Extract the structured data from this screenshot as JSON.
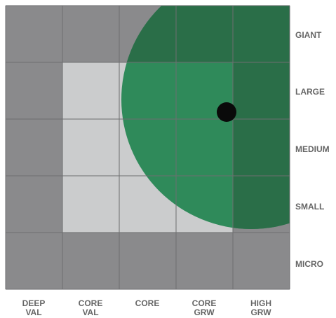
{
  "row_labels": [
    "GIANT",
    "LARGE",
    "MEDIUM",
    "SMALL",
    "MICRO"
  ],
  "col_labels": [
    "DEEP\nVAL",
    "CORE\nVAL",
    "CORE",
    "CORE\nGRW",
    "HIGH\nGRW"
  ],
  "colors": {
    "outer_cell": "#8a8a8c",
    "inner_cell": "#cbcccd",
    "grid_line": "#6e6e70",
    "circle_fill": "#2f8a5a",
    "circle_overlap": "#2a6e48",
    "dot": "#0a0a0a",
    "label": "#666666"
  }
}
